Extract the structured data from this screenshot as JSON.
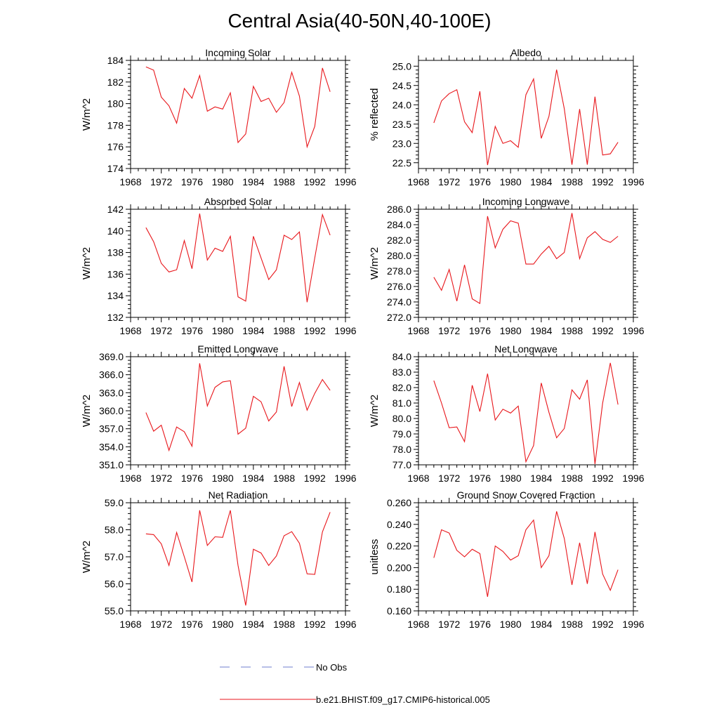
{
  "title": "Central Asia(40-50N,40-100E)",
  "legend": {
    "obs_label": "No Obs",
    "model_label": "b.e21.BHIST.f09_g17.CMIP6-historical.005",
    "model_color": "#e8161b",
    "obs_color": "#6f7fcf"
  },
  "chart_data": [
    {
      "type": "line",
      "title": "Incoming Solar",
      "ylabel": "W/m^2",
      "xlim": [
        1968,
        1996
      ],
      "ylim": [
        174,
        184
      ],
      "xticks": [
        1968,
        1972,
        1976,
        1980,
        1984,
        1988,
        1992,
        1996
      ],
      "yticks": [
        "174",
        "176",
        "178",
        "180",
        "182",
        "184"
      ],
      "x": [
        1970,
        1971,
        1972,
        1973,
        1974,
        1975,
        1976,
        1977,
        1978,
        1979,
        1980,
        1981,
        1982,
        1983,
        1984,
        1985,
        1986,
        1987,
        1988,
        1989,
        1990,
        1991,
        1992,
        1993,
        1994
      ],
      "values": [
        183.4,
        183.1,
        180.6,
        179.8,
        178.2,
        181.4,
        180.5,
        182.6,
        179.3,
        179.7,
        179.5,
        181.0,
        176.4,
        177.2,
        181.6,
        180.2,
        180.5,
        179.2,
        180.1,
        182.9,
        180.7,
        176.0,
        177.9,
        183.3,
        181.1
      ]
    },
    {
      "type": "line",
      "title": "Albedo",
      "ylabel": "% reflected",
      "xlim": [
        1968,
        1996
      ],
      "ylim": [
        22.35,
        25.15
      ],
      "xticks": [
        1968,
        1972,
        1976,
        1980,
        1984,
        1988,
        1992,
        1996
      ],
      "yticks": [
        "22.5",
        "23.0",
        "23.5",
        "24.0",
        "24.5",
        "25.0"
      ],
      "x": [
        1970,
        1971,
        1972,
        1973,
        1974,
        1975,
        1976,
        1977,
        1978,
        1979,
        1980,
        1981,
        1982,
        1983,
        1984,
        1985,
        1986,
        1987,
        1988,
        1989,
        1990,
        1991,
        1992,
        1993,
        1994
      ],
      "values": [
        23.53,
        24.1,
        24.29,
        24.39,
        23.56,
        23.28,
        24.35,
        22.44,
        23.44,
        23.0,
        23.07,
        22.9,
        24.26,
        24.67,
        23.13,
        23.7,
        24.91,
        23.9,
        22.45,
        23.89,
        22.45,
        24.21,
        22.7,
        22.73,
        23.03
      ]
    },
    {
      "type": "line",
      "title": "Absorbed Solar",
      "ylabel": "W/m^2",
      "xlim": [
        1968,
        1996
      ],
      "ylim": [
        132,
        142
      ],
      "xticks": [
        1968,
        1972,
        1976,
        1980,
        1984,
        1988,
        1992,
        1996
      ],
      "yticks": [
        "132",
        "134",
        "136",
        "138",
        "140",
        "142"
      ],
      "x": [
        1970,
        1971,
        1972,
        1973,
        1974,
        1975,
        1976,
        1977,
        1978,
        1979,
        1980,
        1981,
        1982,
        1983,
        1984,
        1985,
        1986,
        1987,
        1988,
        1989,
        1990,
        1991,
        1992,
        1993,
        1994
      ],
      "values": [
        140.3,
        139.0,
        137.0,
        136.2,
        136.4,
        139.1,
        136.5,
        141.6,
        137.3,
        138.4,
        138.1,
        139.5,
        133.9,
        133.5,
        139.5,
        137.5,
        135.5,
        136.4,
        139.6,
        139.2,
        139.9,
        133.4,
        137.5,
        141.5,
        139.6
      ]
    },
    {
      "type": "line",
      "title": "Incoming Longwave",
      "ylabel": "W/m^2",
      "xlim": [
        1968,
        1996
      ],
      "ylim": [
        272,
        286
      ],
      "xticks": [
        1968,
        1972,
        1976,
        1980,
        1984,
        1988,
        1992,
        1996
      ],
      "yticks": [
        "272.0",
        "274.0",
        "276.0",
        "278.0",
        "280.0",
        "282.0",
        "284.0",
        "286.0"
      ],
      "x": [
        1970,
        1971,
        1972,
        1973,
        1974,
        1975,
        1976,
        1977,
        1978,
        1979,
        1980,
        1981,
        1982,
        1983,
        1984,
        1985,
        1986,
        1987,
        1988,
        1989,
        1990,
        1991,
        1992,
        1993,
        1994
      ],
      "values": [
        277.2,
        275.5,
        278.2,
        274.1,
        278.8,
        274.4,
        273.8,
        285.1,
        281.0,
        283.4,
        284.5,
        284.2,
        278.9,
        278.9,
        280.2,
        281.2,
        279.6,
        280.4,
        285.5,
        279.6,
        282.3,
        283.1,
        282.1,
        281.7,
        282.5
      ]
    },
    {
      "type": "line",
      "title": "Emitted Longwave",
      "ylabel": "W/m^2",
      "xlim": [
        1968,
        1996
      ],
      "ylim": [
        351,
        369
      ],
      "xticks": [
        1968,
        1972,
        1976,
        1980,
        1984,
        1988,
        1992,
        1996
      ],
      "yticks": [
        "351.0",
        "354.0",
        "357.0",
        "360.0",
        "363.0",
        "366.0",
        "369.0"
      ],
      "x": [
        1970,
        1971,
        1972,
        1973,
        1974,
        1975,
        1976,
        1977,
        1978,
        1979,
        1980,
        1981,
        1982,
        1983,
        1984,
        1985,
        1986,
        1987,
        1988,
        1989,
        1990,
        1991,
        1992,
        1993,
        1994
      ],
      "values": [
        359.7,
        356.6,
        357.6,
        353.4,
        357.3,
        356.5,
        354.1,
        367.9,
        360.8,
        363.9,
        364.8,
        365.0,
        356.1,
        357.1,
        362.4,
        361.5,
        358.3,
        359.8,
        367.4,
        360.7,
        364.7,
        360.1,
        362.9,
        365.2,
        363.4
      ]
    },
    {
      "type": "line",
      "title": "Net Longwave",
      "ylabel": "W/m^2",
      "xlim": [
        1968,
        1996
      ],
      "ylim": [
        77,
        84
      ],
      "xticks": [
        1968,
        1972,
        1976,
        1980,
        1984,
        1988,
        1992,
        1996
      ],
      "yticks": [
        "77.0",
        "78.0",
        "79.0",
        "80.0",
        "81.0",
        "82.0",
        "83.0",
        "84.0"
      ],
      "x": [
        1970,
        1971,
        1972,
        1973,
        1974,
        1975,
        1976,
        1977,
        1978,
        1979,
        1980,
        1981,
        1982,
        1983,
        1984,
        1985,
        1986,
        1987,
        1988,
        1989,
        1990,
        1991,
        1992,
        1993,
        1994
      ],
      "values": [
        82.45,
        81.0,
        79.4,
        79.45,
        78.5,
        82.15,
        80.45,
        82.9,
        79.9,
        80.6,
        80.35,
        80.8,
        77.2,
        78.25,
        82.3,
        80.4,
        78.75,
        79.35,
        81.85,
        81.25,
        82.5,
        77.05,
        81.0,
        83.6,
        80.9
      ]
    },
    {
      "type": "line",
      "title": "Net Radiation",
      "ylabel": "W/m^2",
      "xlim": [
        1968,
        1996
      ],
      "ylim": [
        55,
        59
      ],
      "xticks": [
        1968,
        1972,
        1976,
        1980,
        1984,
        1988,
        1992,
        1996
      ],
      "yticks": [
        "55.0",
        "56.0",
        "57.0",
        "58.0",
        "59.0"
      ],
      "x": [
        1970,
        1971,
        1972,
        1973,
        1974,
        1975,
        1976,
        1977,
        1978,
        1979,
        1980,
        1981,
        1982,
        1983,
        1984,
        1985,
        1986,
        1987,
        1988,
        1989,
        1990,
        1991,
        1992,
        1993,
        1994
      ],
      "values": [
        57.85,
        57.82,
        57.48,
        56.68,
        57.9,
        57.0,
        56.07,
        58.72,
        57.42,
        57.74,
        57.72,
        58.72,
        56.68,
        55.2,
        57.28,
        57.14,
        56.68,
        57.03,
        57.78,
        57.93,
        57.5,
        56.37,
        56.35,
        57.92,
        58.65
      ]
    },
    {
      "type": "line",
      "title": "Ground Snow Covered Fraction",
      "ylabel": "unitless",
      "xlim": [
        1968,
        1996
      ],
      "ylim": [
        0.16,
        0.26
      ],
      "xticks": [
        1968,
        1972,
        1976,
        1980,
        1984,
        1988,
        1992,
        1996
      ],
      "yticks": [
        "0.160",
        "0.180",
        "0.200",
        "0.220",
        "0.240",
        "0.260"
      ],
      "x": [
        1970,
        1971,
        1972,
        1973,
        1974,
        1975,
        1976,
        1977,
        1978,
        1979,
        1980,
        1981,
        1982,
        1983,
        1984,
        1985,
        1986,
        1987,
        1988,
        1989,
        1990,
        1991,
        1992,
        1993,
        1994
      ],
      "values": [
        0.209,
        0.235,
        0.232,
        0.216,
        0.21,
        0.217,
        0.213,
        0.173,
        0.22,
        0.215,
        0.207,
        0.211,
        0.235,
        0.244,
        0.2,
        0.211,
        0.252,
        0.227,
        0.184,
        0.223,
        0.185,
        0.233,
        0.194,
        0.179,
        0.198
      ]
    }
  ]
}
